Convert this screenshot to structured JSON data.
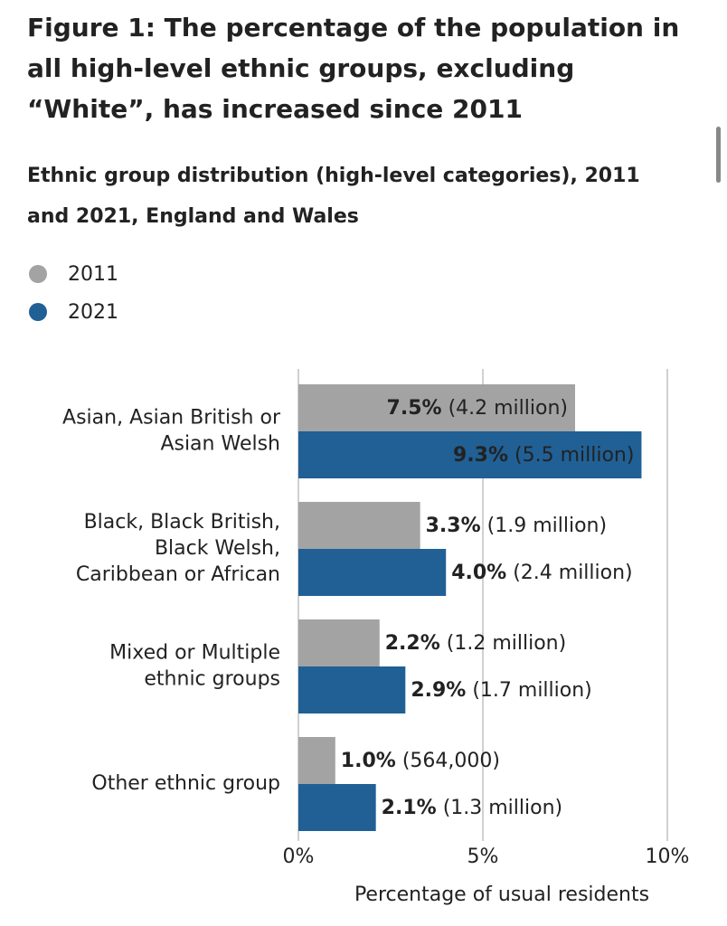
{
  "chart_data": {
    "type": "grouped-hbar",
    "title": "Figure 1: The percentage of the population in all high-level ethnic groups, excluding “White”, has increased since 2011",
    "subtitle": "Ethnic group distribution (high-level categories), 2011 and 2021, England and Wales",
    "categories": [
      [
        "Asian, Asian British or",
        "Asian Welsh"
      ],
      [
        "Black, Black British,",
        "Black Welsh,",
        "Caribbean or African"
      ],
      [
        "Mixed or Multiple",
        "ethnic groups"
      ],
      [
        "Other ethnic group"
      ]
    ],
    "series": [
      {
        "name": "2011",
        "color": "#a3a3a3",
        "values": [
          7.5,
          3.3,
          2.2,
          1.0
        ],
        "value_labels": [
          "7.5%",
          "3.3%",
          "2.2%",
          "1.0%"
        ],
        "counts": [
          "(4.2 million)",
          "(1.9 million)",
          "(1.2 million)",
          "(564,000)"
        ]
      },
      {
        "name": "2021",
        "color": "#206095",
        "values": [
          9.3,
          4.0,
          2.9,
          2.1
        ],
        "value_labels": [
          "9.3%",
          "4.0%",
          "2.9%",
          "2.1%"
        ],
        "counts": [
          "(5.5 million)",
          "(2.4 million)",
          "(1.7 million)",
          "(1.3 million)"
        ]
      }
    ],
    "xlim": [
      0,
      10
    ],
    "xticks": [
      {
        "value": 0,
        "label": "0%"
      },
      {
        "value": 5,
        "label": "5%"
      },
      {
        "value": 10,
        "label": "10%"
      }
    ],
    "xlabel": "Percentage of usual residents",
    "grid": true
  }
}
